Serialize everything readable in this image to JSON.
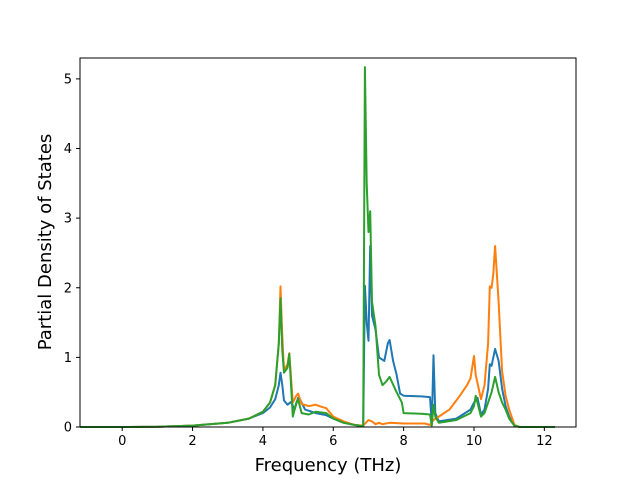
{
  "chart_data": {
    "type": "line",
    "xlabel": "Frequency (THz)",
    "ylabel": "Partial Density of States",
    "xlim": [
      -1.2,
      12.9
    ],
    "ylim": [
      0,
      5.3
    ],
    "xticks": [
      0,
      2,
      4,
      6,
      8,
      10,
      12
    ],
    "yticks": [
      0,
      1,
      2,
      3,
      4,
      5
    ],
    "grid": false,
    "series": [
      {
        "color": "#1f77b4",
        "points": [
          [
            -1.2,
            0.0
          ],
          [
            0.0,
            0.0
          ],
          [
            1.0,
            0.005
          ],
          [
            2.0,
            0.02
          ],
          [
            3.0,
            0.06
          ],
          [
            3.6,
            0.12
          ],
          [
            4.0,
            0.2
          ],
          [
            4.2,
            0.28
          ],
          [
            4.35,
            0.4
          ],
          [
            4.45,
            0.6
          ],
          [
            4.5,
            0.78
          ],
          [
            4.55,
            0.6
          ],
          [
            4.6,
            0.38
          ],
          [
            4.7,
            0.32
          ],
          [
            4.8,
            0.36
          ],
          [
            4.9,
            0.25
          ],
          [
            5.0,
            0.42
          ],
          [
            5.05,
            0.4
          ],
          [
            5.2,
            0.25
          ],
          [
            5.5,
            0.2
          ],
          [
            5.8,
            0.17
          ],
          [
            6.0,
            0.12
          ],
          [
            6.3,
            0.06
          ],
          [
            6.6,
            0.03
          ],
          [
            6.85,
            0.01
          ],
          [
            6.9,
            2.03
          ],
          [
            6.95,
            1.5
          ],
          [
            7.0,
            1.24
          ],
          [
            7.05,
            2.6
          ],
          [
            7.1,
            1.6
          ],
          [
            7.2,
            1.4
          ],
          [
            7.3,
            1.0
          ],
          [
            7.45,
            0.95
          ],
          [
            7.55,
            1.2
          ],
          [
            7.6,
            1.25
          ],
          [
            7.7,
            0.95
          ],
          [
            7.8,
            0.75
          ],
          [
            7.9,
            0.48
          ],
          [
            8.0,
            0.45
          ],
          [
            8.5,
            0.44
          ],
          [
            8.75,
            0.43
          ],
          [
            8.8,
            0.05
          ],
          [
            8.85,
            1.03
          ],
          [
            8.9,
            0.2
          ],
          [
            9.0,
            0.08
          ],
          [
            9.5,
            0.12
          ],
          [
            9.9,
            0.25
          ],
          [
            10.0,
            0.35
          ],
          [
            10.1,
            0.42
          ],
          [
            10.2,
            0.18
          ],
          [
            10.3,
            0.25
          ],
          [
            10.4,
            0.55
          ],
          [
            10.45,
            0.9
          ],
          [
            10.5,
            0.88
          ],
          [
            10.55,
            1.0
          ],
          [
            10.6,
            1.12
          ],
          [
            10.7,
            0.95
          ],
          [
            10.8,
            0.55
          ],
          [
            10.9,
            0.3
          ],
          [
            11.0,
            0.15
          ],
          [
            11.15,
            0.02
          ],
          [
            11.3,
            0.0
          ],
          [
            12.3,
            0.0
          ]
        ]
      },
      {
        "color": "#ff7f0e",
        "points": [
          [
            -1.2,
            0.0
          ],
          [
            0.0,
            0.0
          ],
          [
            1.0,
            0.005
          ],
          [
            2.0,
            0.02
          ],
          [
            3.0,
            0.06
          ],
          [
            3.6,
            0.12
          ],
          [
            4.0,
            0.22
          ],
          [
            4.2,
            0.35
          ],
          [
            4.35,
            0.6
          ],
          [
            4.45,
            1.2
          ],
          [
            4.5,
            2.02
          ],
          [
            4.55,
            1.3
          ],
          [
            4.6,
            0.82
          ],
          [
            4.7,
            0.9
          ],
          [
            4.75,
            1.06
          ],
          [
            4.85,
            0.35
          ],
          [
            4.95,
            0.45
          ],
          [
            5.0,
            0.48
          ],
          [
            5.1,
            0.33
          ],
          [
            5.3,
            0.3
          ],
          [
            5.5,
            0.32
          ],
          [
            5.6,
            0.3
          ],
          [
            5.8,
            0.27
          ],
          [
            6.0,
            0.15
          ],
          [
            6.3,
            0.08
          ],
          [
            6.6,
            0.03
          ],
          [
            6.85,
            0.02
          ],
          [
            7.0,
            0.1
          ],
          [
            7.1,
            0.08
          ],
          [
            7.2,
            0.04
          ],
          [
            7.3,
            0.06
          ],
          [
            7.4,
            0.04
          ],
          [
            7.6,
            0.06
          ],
          [
            8.0,
            0.05
          ],
          [
            8.6,
            0.05
          ],
          [
            8.75,
            0.03
          ],
          [
            8.85,
            0.1
          ],
          [
            9.0,
            0.15
          ],
          [
            9.3,
            0.25
          ],
          [
            9.6,
            0.45
          ],
          [
            9.8,
            0.6
          ],
          [
            9.9,
            0.7
          ],
          [
            10.0,
            1.02
          ],
          [
            10.05,
            0.75
          ],
          [
            10.2,
            0.4
          ],
          [
            10.3,
            0.6
          ],
          [
            10.4,
            1.2
          ],
          [
            10.45,
            2.02
          ],
          [
            10.5,
            2.0
          ],
          [
            10.55,
            2.2
          ],
          [
            10.6,
            2.6
          ],
          [
            10.7,
            1.8
          ],
          [
            10.8,
            0.8
          ],
          [
            10.9,
            0.45
          ],
          [
            11.0,
            0.25
          ],
          [
            11.15,
            0.03
          ],
          [
            11.3,
            0.0
          ],
          [
            12.3,
            0.0
          ]
        ]
      },
      {
        "color": "#2ca02c",
        "points": [
          [
            -1.2,
            0.0
          ],
          [
            0.0,
            0.0
          ],
          [
            1.0,
            0.005
          ],
          [
            2.0,
            0.02
          ],
          [
            3.0,
            0.06
          ],
          [
            3.6,
            0.12
          ],
          [
            4.0,
            0.22
          ],
          [
            4.2,
            0.35
          ],
          [
            4.35,
            0.6
          ],
          [
            4.45,
            1.2
          ],
          [
            4.5,
            1.85
          ],
          [
            4.55,
            1.1
          ],
          [
            4.6,
            0.78
          ],
          [
            4.7,
            0.85
          ],
          [
            4.75,
            1.05
          ],
          [
            4.85,
            0.15
          ],
          [
            4.95,
            0.35
          ],
          [
            5.0,
            0.4
          ],
          [
            5.1,
            0.2
          ],
          [
            5.3,
            0.18
          ],
          [
            5.5,
            0.22
          ],
          [
            5.8,
            0.2
          ],
          [
            6.0,
            0.12
          ],
          [
            6.3,
            0.06
          ],
          [
            6.6,
            0.03
          ],
          [
            6.85,
            0.01
          ],
          [
            6.9,
            5.17
          ],
          [
            6.95,
            3.5
          ],
          [
            7.0,
            2.8
          ],
          [
            7.05,
            3.1
          ],
          [
            7.1,
            1.8
          ],
          [
            7.2,
            1.45
          ],
          [
            7.3,
            0.75
          ],
          [
            7.4,
            0.6
          ],
          [
            7.5,
            0.65
          ],
          [
            7.6,
            0.72
          ],
          [
            7.8,
            0.5
          ],
          [
            7.95,
            0.35
          ],
          [
            8.0,
            0.2
          ],
          [
            8.5,
            0.19
          ],
          [
            8.75,
            0.18
          ],
          [
            8.8,
            0.02
          ],
          [
            8.85,
            0.32
          ],
          [
            8.9,
            0.15
          ],
          [
            9.0,
            0.06
          ],
          [
            9.5,
            0.1
          ],
          [
            9.9,
            0.2
          ],
          [
            10.0,
            0.3
          ],
          [
            10.05,
            0.45
          ],
          [
            10.2,
            0.15
          ],
          [
            10.3,
            0.2
          ],
          [
            10.4,
            0.35
          ],
          [
            10.5,
            0.5
          ],
          [
            10.6,
            0.72
          ],
          [
            10.7,
            0.5
          ],
          [
            10.8,
            0.35
          ],
          [
            10.9,
            0.25
          ],
          [
            11.0,
            0.12
          ],
          [
            11.15,
            0.02
          ],
          [
            11.3,
            0.0
          ],
          [
            12.3,
            0.0
          ]
        ]
      }
    ]
  }
}
